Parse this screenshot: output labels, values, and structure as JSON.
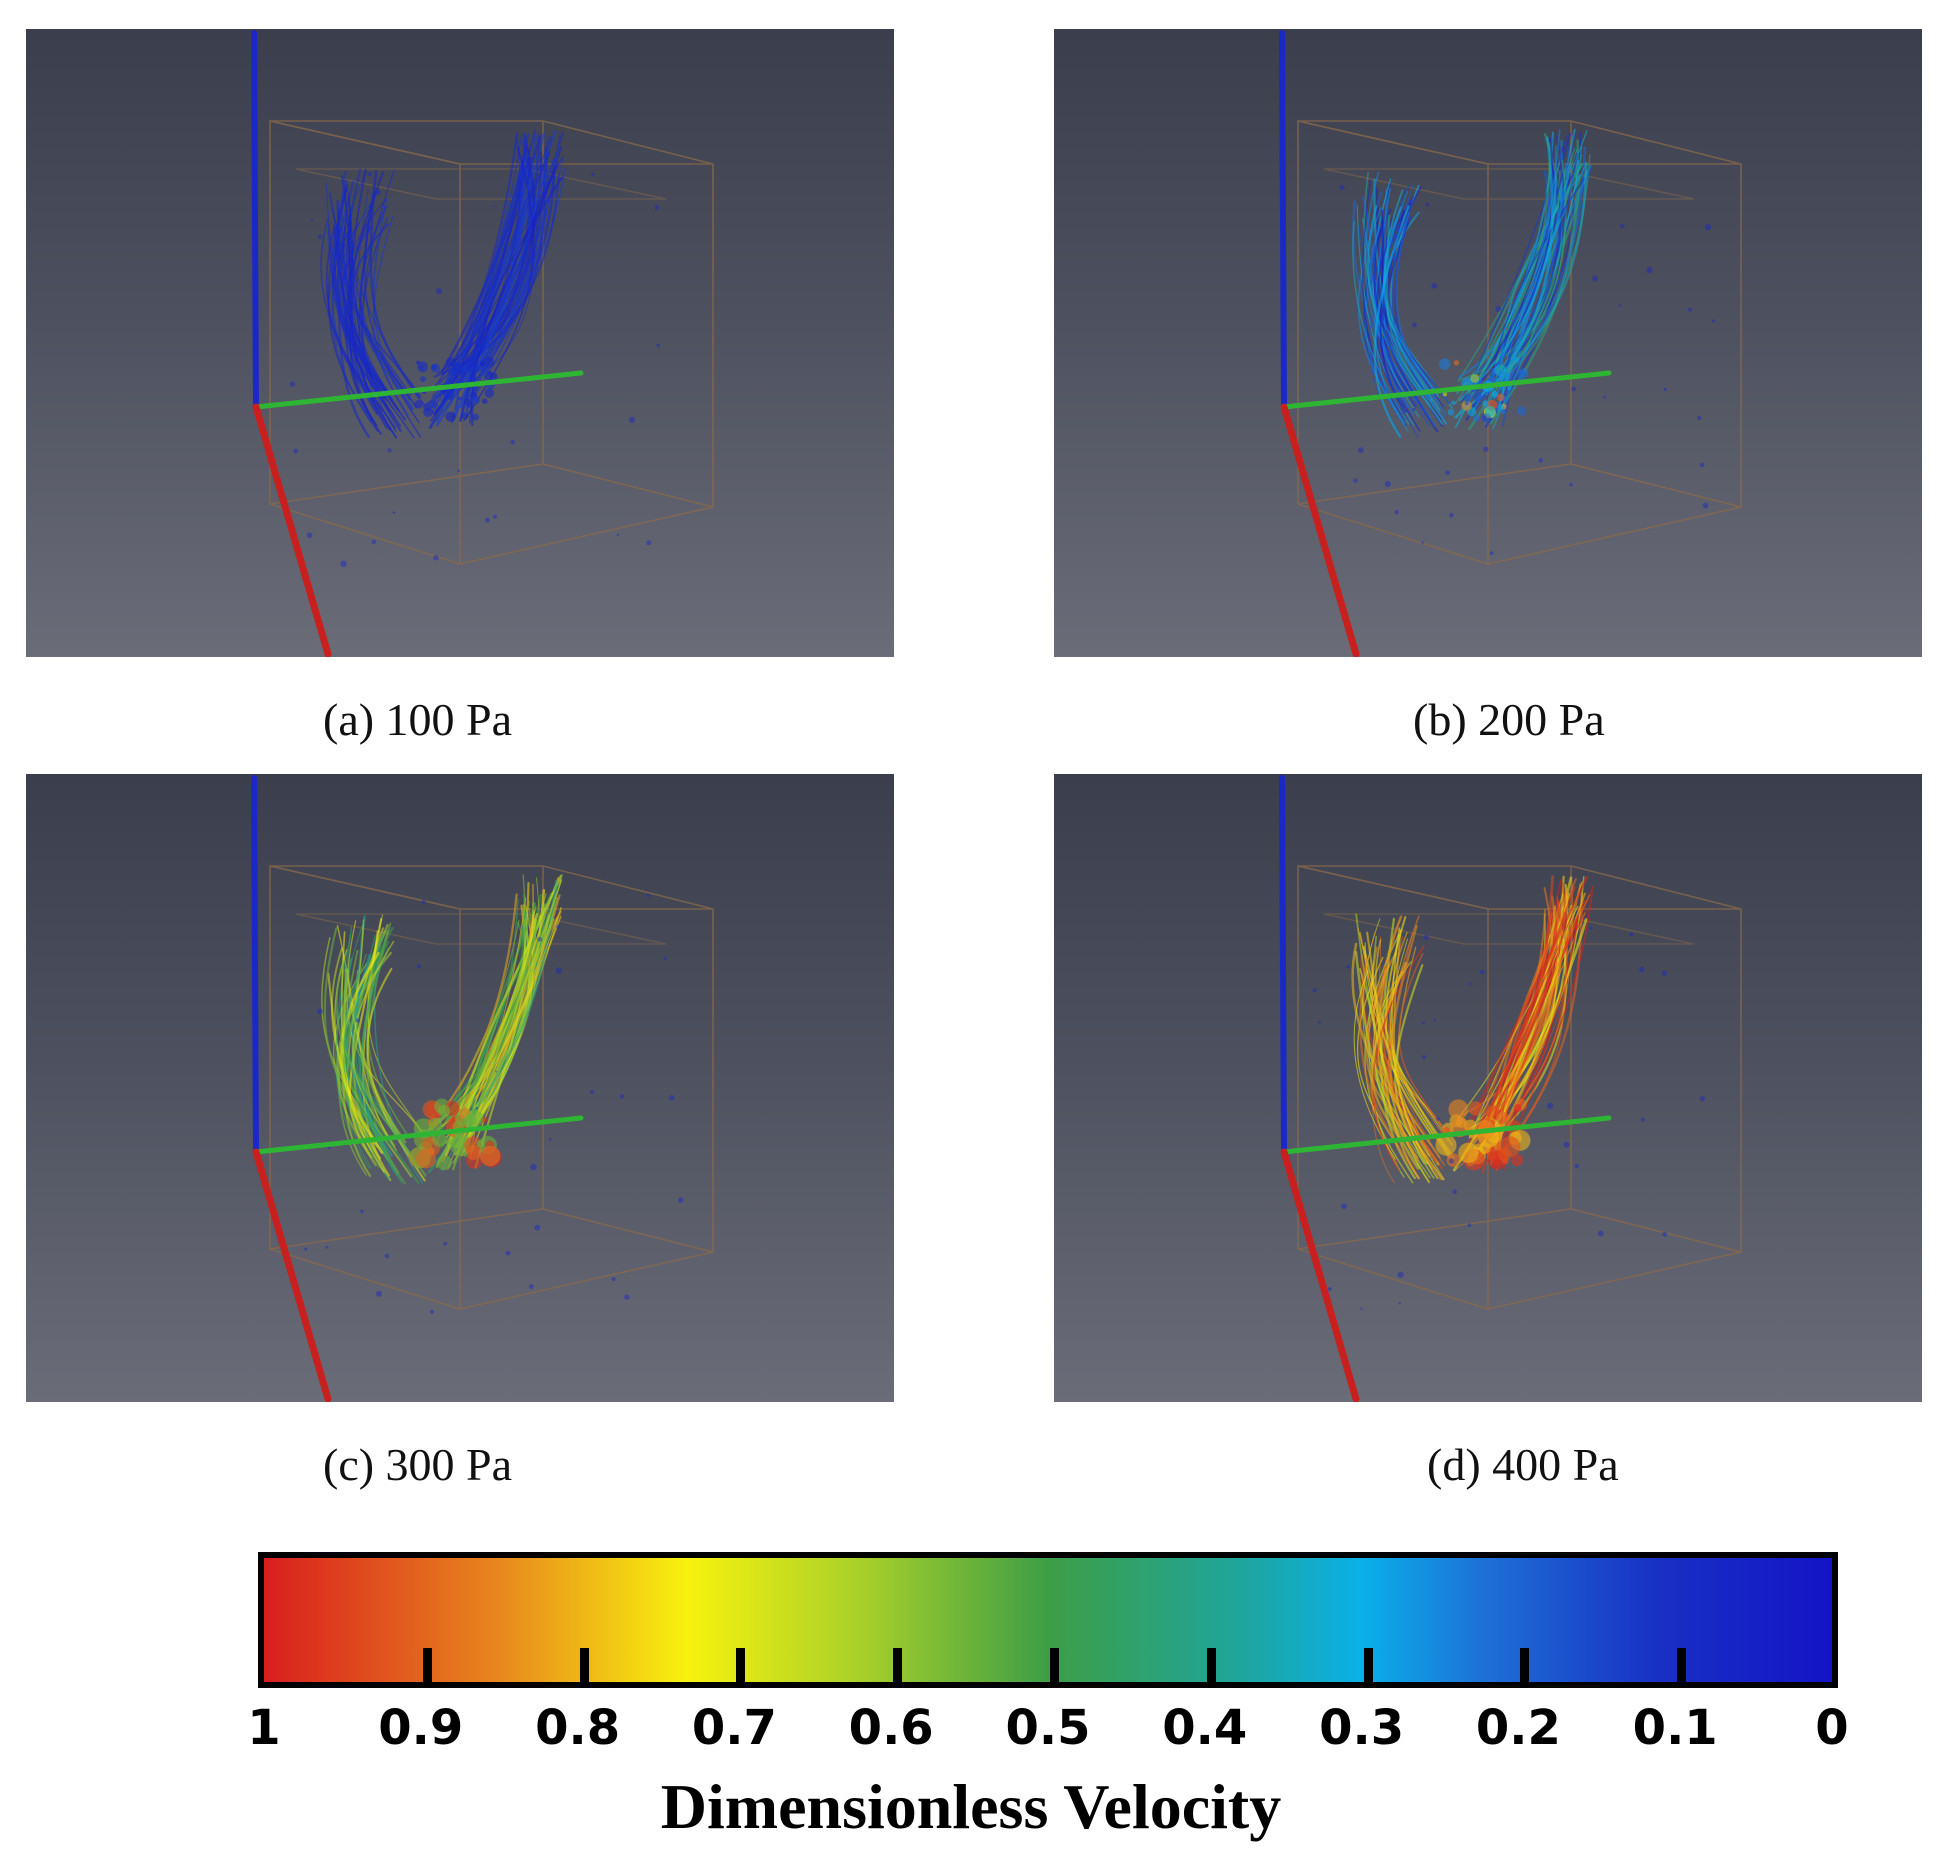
{
  "panels": [
    {
      "id": "a",
      "caption": "(a) 100 Pa",
      "level": 0.05
    },
    {
      "id": "b",
      "caption": "(b) 200 Pa",
      "level": 0.2
    },
    {
      "id": "c",
      "caption": "(c) 300 Pa",
      "level": 0.55
    },
    {
      "id": "d",
      "caption": "(d) 400 Pa",
      "level": 0.8
    }
  ],
  "colorbar": {
    "title": "Dimensionless Velocity",
    "ticks": [
      "1",
      "0.9",
      "0.8",
      "0.7",
      "0.6",
      "0.5",
      "0.4",
      "0.3",
      "0.2",
      "0.1",
      "0"
    ],
    "colors": {
      "high": "#d91e1e",
      "mid_high": "#f7f20e",
      "mid": "#3d9e46",
      "mid_low": "#0ab0e8",
      "low": "#1414c6"
    }
  }
}
